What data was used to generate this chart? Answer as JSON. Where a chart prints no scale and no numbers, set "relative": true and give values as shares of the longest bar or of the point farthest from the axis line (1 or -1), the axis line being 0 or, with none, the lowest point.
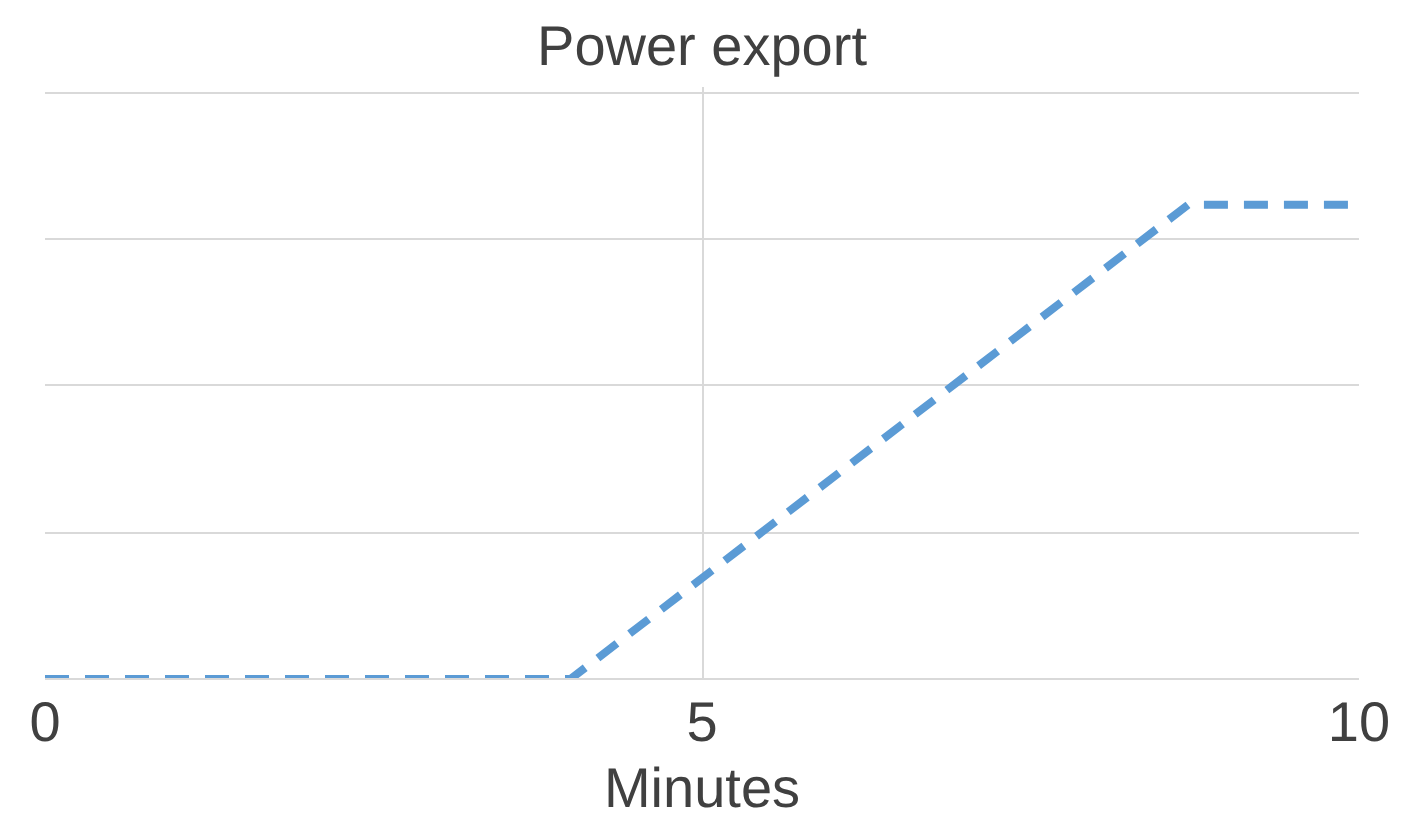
{
  "chart_data": {
    "type": "line",
    "title": "Power export",
    "xlabel": "Minutes",
    "relative": true,
    "x": [
      0,
      4,
      8.7,
      10
    ],
    "series": [
      {
        "color": "#5b9bd5",
        "values": [
          0,
          0,
          1,
          1
        ]
      }
    ],
    "xlim": [
      0,
      10
    ],
    "xticks": [
      0,
      5,
      10
    ],
    "grid": true,
    "line_style": "dashed",
    "marker": "none"
  }
}
